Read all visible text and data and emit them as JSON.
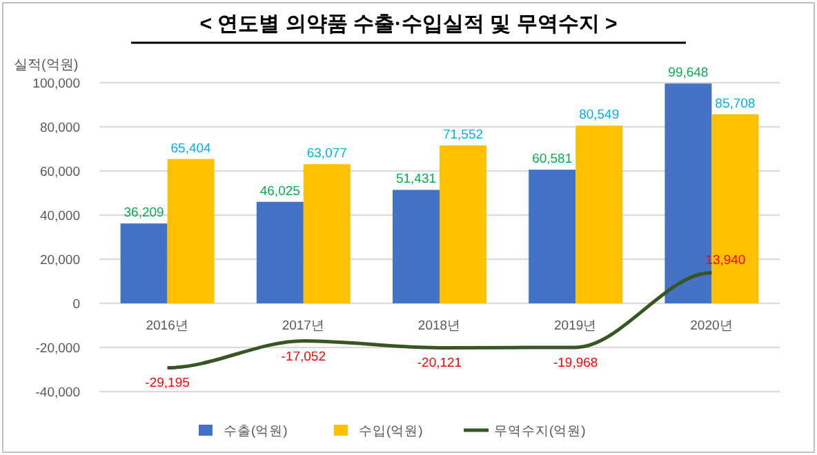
{
  "chart_data": {
    "type": "bar",
    "title": "< 연도별 의약품 수출·수입실적 및 무역수지 >",
    "ylabel": "실적(억원)",
    "categories": [
      "2016년",
      "2017년",
      "2018년",
      "2019년",
      "2020년"
    ],
    "series": [
      {
        "name": "수출(억원)",
        "color": "#4472c4",
        "values": [
          36209,
          46025,
          51431,
          60581,
          99648
        ],
        "value_labels": [
          "36,209",
          "46,025",
          "51,431",
          "60,581",
          "99,648"
        ]
      },
      {
        "name": "수입(억원)",
        "color": "#ffc000",
        "values": [
          65404,
          63077,
          71552,
          80549,
          85708
        ],
        "value_labels": [
          "65,404",
          "63,077",
          "71,552",
          "80,549",
          "85,708"
        ]
      },
      {
        "name": "무역수지(억원)",
        "type": "line",
        "color": "#375623",
        "values": [
          -29195,
          -17052,
          -20121,
          -19968,
          13940
        ],
        "value_labels": [
          "-29,195",
          "-17,052",
          "-20,121",
          "-19,968",
          "13,940"
        ]
      }
    ],
    "ylim": [
      -40000,
      100000
    ],
    "yticks": [
      {
        "value": -40000,
        "label": "-40,000"
      },
      {
        "value": -20000,
        "label": "-20,000"
      },
      0,
      {
        "value": 20000,
        "label": "20,000"
      },
      {
        "value": 40000,
        "label": "40,000"
      },
      {
        "value": 60000,
        "label": "60,000"
      },
      {
        "value": 80000,
        "label": "80,000"
      },
      {
        "value": 100000,
        "label": "100,000"
      }
    ],
    "grid": "y",
    "legend": "bottom",
    "marker": "none",
    "line_style": "solid"
  }
}
